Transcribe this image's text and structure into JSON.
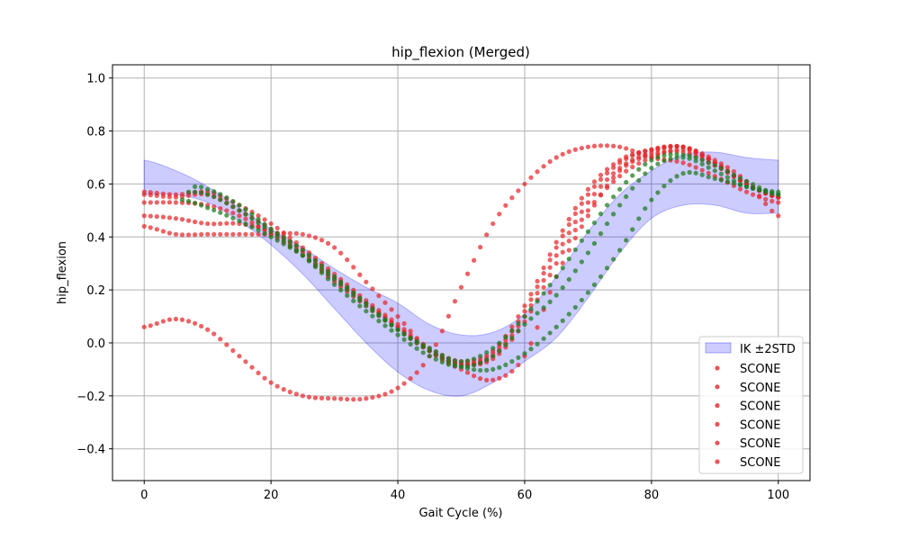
{
  "chart_data": {
    "type": "scatter",
    "title": "hip_flexion (Merged)",
    "xlabel": "Gait Cycle (%)",
    "ylabel": "hip_flexion",
    "xlim": [
      -5,
      105
    ],
    "ylim": [
      -0.52,
      1.05
    ],
    "xticks": [
      0,
      20,
      40,
      60,
      80,
      100
    ],
    "yticks": [
      -0.4,
      -0.2,
      0.0,
      0.2,
      0.4,
      0.6,
      0.8,
      1.0
    ],
    "xtick_labels": [
      "0",
      "20",
      "40",
      "60",
      "80",
      "100"
    ],
    "ytick_labels": [
      "−0.4",
      "−0.2",
      "0.0",
      "0.2",
      "0.4",
      "0.6",
      "0.8",
      "1.0"
    ],
    "grid": true,
    "legend_position": "lower-right",
    "band": {
      "name": "IK ±2STD",
      "color": "#0000ff",
      "x": [
        0,
        5,
        10,
        15,
        20,
        25,
        30,
        35,
        40,
        45,
        50,
        55,
        60,
        65,
        70,
        75,
        80,
        85,
        90,
        95,
        100
      ],
      "upper": [
        0.69,
        0.65,
        0.59,
        0.51,
        0.43,
        0.36,
        0.28,
        0.21,
        0.15,
        0.07,
        0.03,
        0.04,
        0.11,
        0.25,
        0.42,
        0.56,
        0.65,
        0.71,
        0.72,
        0.7,
        0.69
      ],
      "lower": [
        0.56,
        0.56,
        0.53,
        0.46,
        0.37,
        0.26,
        0.13,
        0.0,
        -0.11,
        -0.18,
        -0.2,
        -0.15,
        -0.07,
        0.02,
        0.17,
        0.34,
        0.47,
        0.52,
        0.52,
        0.49,
        0.49
      ]
    },
    "series": [
      {
        "name": "SCONE",
        "color": "#e8262a",
        "x": [
          0,
          5,
          10,
          15,
          20,
          25,
          30,
          35,
          40,
          45,
          50,
          55,
          60,
          65,
          70,
          75,
          80,
          85,
          90,
          95,
          100
        ],
        "values": [
          0.06,
          0.09,
          0.05,
          -0.05,
          -0.15,
          -0.2,
          -0.21,
          -0.21,
          -0.17,
          -0.05,
          0.21,
          0.45,
          0.6,
          0.7,
          0.74,
          0.74,
          0.7,
          0.68,
          0.63,
          0.57,
          0.53
        ]
      },
      {
        "name": "SCONE",
        "color": "#e8262a",
        "x": [
          0,
          5,
          10,
          15,
          20,
          25,
          30,
          35,
          40,
          45,
          50,
          55,
          60,
          65,
          70,
          75,
          80,
          85,
          90,
          95,
          100
        ],
        "values": [
          0.44,
          0.41,
          0.41,
          0.41,
          0.41,
          0.41,
          0.36,
          0.23,
          0.1,
          -0.03,
          -0.1,
          -0.14,
          -0.05,
          0.25,
          0.48,
          0.65,
          0.71,
          0.72,
          0.67,
          0.6,
          0.55
        ]
      },
      {
        "name": "SCONE",
        "color": "#e8262a",
        "x": [
          0,
          5,
          10,
          15,
          20,
          25,
          30,
          35,
          40,
          45,
          50,
          55,
          60,
          65,
          70,
          75,
          80,
          85,
          90,
          95,
          100
        ],
        "values": [
          0.48,
          0.47,
          0.45,
          0.45,
          0.42,
          0.34,
          0.24,
          0.15,
          0.06,
          -0.03,
          -0.08,
          -0.06,
          0.08,
          0.3,
          0.5,
          0.63,
          0.7,
          0.73,
          0.68,
          0.6,
          0.55
        ]
      },
      {
        "name": "SCONE",
        "color": "#e8262a",
        "x": [
          0,
          5,
          10,
          15,
          20,
          25,
          30,
          35,
          40,
          45,
          50,
          55,
          60,
          65,
          70,
          75,
          80,
          85,
          90,
          95,
          100
        ],
        "values": [
          0.53,
          0.53,
          0.52,
          0.48,
          0.41,
          0.33,
          0.23,
          0.14,
          0.05,
          -0.03,
          -0.08,
          -0.05,
          0.1,
          0.33,
          0.53,
          0.66,
          0.72,
          0.74,
          0.68,
          0.6,
          0.55
        ]
      },
      {
        "name": "SCONE",
        "color": "#e8262a",
        "x": [
          0,
          5,
          10,
          15,
          20,
          25,
          30,
          35,
          40,
          45,
          50,
          55,
          60,
          65,
          70,
          75,
          80,
          85,
          90,
          95,
          100
        ],
        "values": [
          0.56,
          0.55,
          0.56,
          0.5,
          0.43,
          0.35,
          0.25,
          0.15,
          0.06,
          -0.03,
          -0.08,
          -0.04,
          0.12,
          0.36,
          0.56,
          0.68,
          0.73,
          0.74,
          0.68,
          0.6,
          0.55
        ]
      },
      {
        "name": "SCONE",
        "color": "#e8262a",
        "x": [
          0,
          5,
          10,
          15,
          20,
          25,
          30,
          35,
          40,
          45,
          50,
          55,
          60,
          65,
          70,
          75,
          80,
          85,
          90,
          95,
          100
        ],
        "values": [
          0.57,
          0.56,
          0.57,
          0.52,
          0.45,
          0.36,
          0.26,
          0.16,
          0.07,
          -0.02,
          -0.07,
          -0.03,
          0.14,
          0.38,
          0.58,
          0.69,
          0.73,
          0.74,
          0.69,
          0.61,
          0.48
        ]
      },
      {
        "name": "",
        "color": "#1a7a1a",
        "x": [
          6,
          10,
          15,
          20,
          25,
          30,
          35,
          40,
          45,
          50,
          55,
          60,
          65,
          70,
          75,
          80,
          85,
          90,
          95,
          100
        ],
        "values": [
          0.54,
          0.51,
          0.46,
          0.4,
          0.33,
          0.24,
          0.14,
          0.05,
          -0.03,
          -0.09,
          -0.1,
          -0.04,
          0.06,
          0.19,
          0.35,
          0.54,
          0.64,
          0.62,
          0.59,
          0.56
        ]
      },
      {
        "name": "",
        "color": "#1a7a1a",
        "x": [
          7,
          10,
          15,
          20,
          25,
          30,
          35,
          40,
          45,
          50,
          55,
          60,
          65,
          70,
          75,
          80,
          85,
          90,
          95,
          100
        ],
        "values": [
          0.57,
          0.56,
          0.5,
          0.42,
          0.33,
          0.22,
          0.12,
          0.03,
          -0.05,
          -0.09,
          -0.05,
          0.07,
          0.18,
          0.34,
          0.52,
          0.66,
          0.7,
          0.65,
          0.59,
          0.57
        ]
      },
      {
        "name": "",
        "color": "#1a7a1a",
        "x": [
          8,
          10,
          15,
          20,
          25,
          30,
          35,
          40,
          45,
          50,
          55,
          60,
          65,
          70,
          75,
          80,
          85,
          90,
          95,
          100
        ],
        "values": [
          0.59,
          0.58,
          0.52,
          0.43,
          0.35,
          0.25,
          0.15,
          0.05,
          -0.02,
          -0.07,
          -0.02,
          0.1,
          0.25,
          0.42,
          0.58,
          0.69,
          0.71,
          0.67,
          0.61,
          0.56
        ]
      }
    ]
  },
  "legend": {
    "band_label": "IK ±2STD",
    "scone_labels": [
      "SCONE",
      "SCONE",
      "SCONE",
      "SCONE",
      "SCONE",
      "SCONE"
    ]
  }
}
